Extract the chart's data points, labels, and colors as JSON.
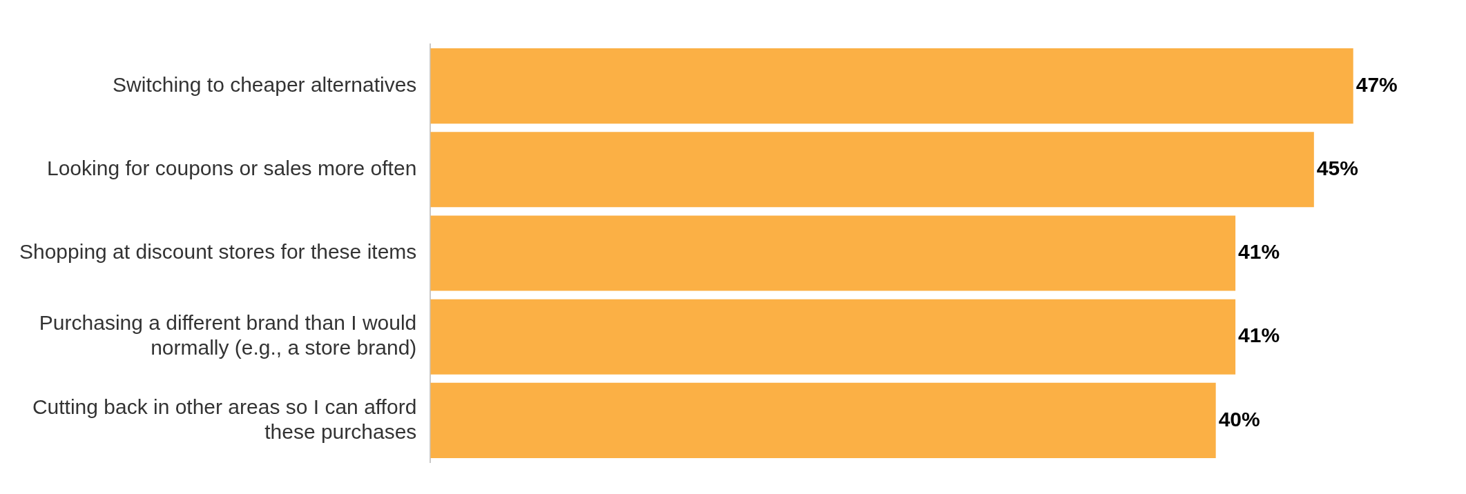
{
  "chart_data": {
    "type": "bar",
    "orientation": "horizontal",
    "categories": [
      "Switching to cheaper alternatives",
      "Looking for coupons or sales more often",
      "Shopping at discount stores for these items",
      "Purchasing a different brand than I would normally (e.g., a store brand)",
      "Cutting back in other areas so I can afford these purchases"
    ],
    "values": [
      47,
      45,
      41,
      41,
      40
    ],
    "color": "#fbb045",
    "data_labels": true,
    "value_labels": [
      "47%",
      "45%",
      "41%",
      "41%",
      "40%"
    ],
    "legend": false
  }
}
